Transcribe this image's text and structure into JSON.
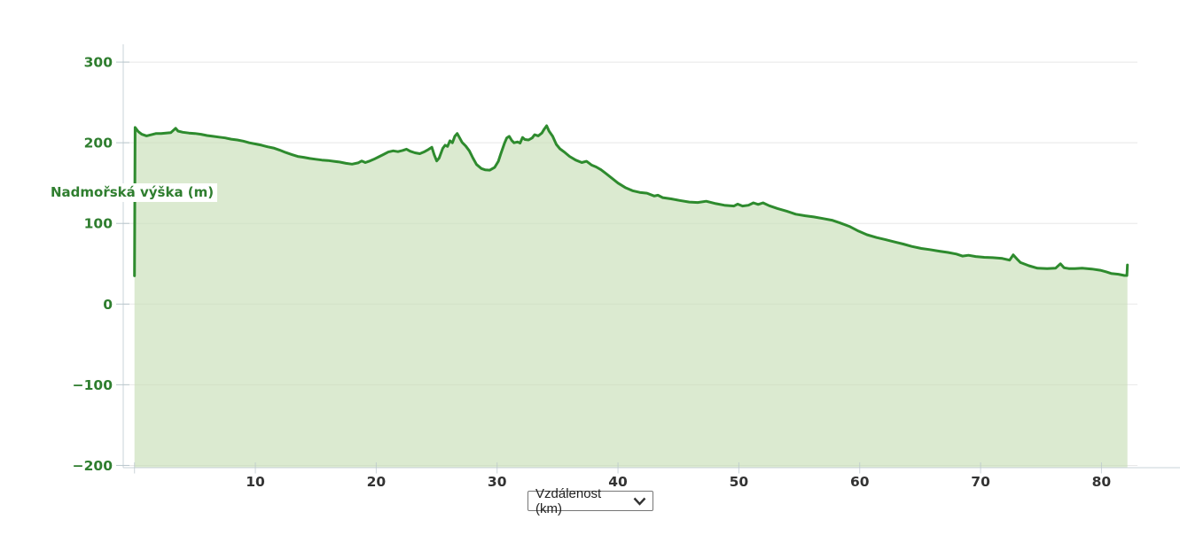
{
  "page": {
    "background": "#ffffff"
  },
  "controls": {
    "x_axis_select": {
      "value": "Vzdálenost (km)",
      "icon": "chevron-down-icon"
    }
  },
  "chart_data": {
    "type": "area",
    "title": "",
    "xlabel": "Vzdálenost (km)",
    "ylabel": "Nadmořská výška (m)",
    "xlim": [
      0,
      83
    ],
    "ylim": [
      -200,
      320
    ],
    "grid": true,
    "legend": false,
    "yticks": [
      {
        "v": 300,
        "label": "300"
      },
      {
        "v": 200,
        "label": "200"
      },
      {
        "v": 100,
        "label": "100"
      },
      {
        "v": 0,
        "label": "0"
      },
      {
        "v": -100,
        "label": "−100"
      },
      {
        "v": -200,
        "label": "−200"
      }
    ],
    "xticks": [
      {
        "v": 0,
        "label": ""
      },
      {
        "v": 10,
        "label": "10"
      },
      {
        "v": 20,
        "label": "20"
      },
      {
        "v": 30,
        "label": "30"
      },
      {
        "v": 40,
        "label": "40"
      },
      {
        "v": 50,
        "label": "50"
      },
      {
        "v": 60,
        "label": "60"
      },
      {
        "v": 70,
        "label": "70"
      },
      {
        "v": 80,
        "label": "80"
      }
    ],
    "colors": {
      "line": "#2e8b2e",
      "fill": "#c5ddb3",
      "fill_opacity": 0.62,
      "y_label": "#2f7e2f",
      "x_label": "#333333",
      "grid": "#e8e8e8",
      "axis": "#c9d3da",
      "tick": "#b9c6cc"
    },
    "series": [
      {
        "name": "Nadmořská výška (m)",
        "units": {
          "x": "km",
          "y": "m"
        },
        "points": [
          [
            0,
            35
          ],
          [
            0.05,
            219
          ],
          [
            0.3,
            214
          ],
          [
            0.6,
            210.5
          ],
          [
            1,
            208.5
          ],
          [
            1.4,
            210
          ],
          [
            1.8,
            211.5
          ],
          [
            2.2,
            211.5
          ],
          [
            2.6,
            212
          ],
          [
            3,
            212.5
          ],
          [
            3.4,
            218
          ],
          [
            3.6,
            214.5
          ],
          [
            4,
            213
          ],
          [
            4.5,
            212
          ],
          [
            5,
            211.5
          ],
          [
            5.5,
            210.5
          ],
          [
            6,
            209
          ],
          [
            6.5,
            208
          ],
          [
            7,
            207
          ],
          [
            7.5,
            206
          ],
          [
            8,
            204.5
          ],
          [
            8.5,
            203.5
          ],
          [
            9,
            202
          ],
          [
            9.5,
            200
          ],
          [
            10,
            198.5
          ],
          [
            10.5,
            197
          ],
          [
            11,
            195
          ],
          [
            11.5,
            193.5
          ],
          [
            12,
            191
          ],
          [
            12.5,
            188
          ],
          [
            13,
            185.5
          ],
          [
            13.5,
            183
          ],
          [
            14,
            182
          ],
          [
            14.5,
            180.5
          ],
          [
            15,
            179.5
          ],
          [
            15.5,
            178.5
          ],
          [
            16,
            178
          ],
          [
            16.5,
            177
          ],
          [
            17,
            176
          ],
          [
            17.5,
            174.5
          ],
          [
            18,
            173.5
          ],
          [
            18.5,
            175
          ],
          [
            18.8,
            177.5
          ],
          [
            19.1,
            175.5
          ],
          [
            19.4,
            177
          ],
          [
            19.8,
            179.5
          ],
          [
            20.2,
            182.5
          ],
          [
            20.6,
            185.5
          ],
          [
            21,
            188.5
          ],
          [
            21.4,
            190
          ],
          [
            21.8,
            189
          ],
          [
            22.2,
            190.5
          ],
          [
            22.5,
            192
          ],
          [
            22.8,
            189.5
          ],
          [
            23.2,
            187.5
          ],
          [
            23.6,
            186.5
          ],
          [
            24,
            189
          ],
          [
            24.3,
            191.5
          ],
          [
            24.6,
            194.5
          ],
          [
            24.8,
            185
          ],
          [
            25,
            177.5
          ],
          [
            25.2,
            181
          ],
          [
            25.5,
            193
          ],
          [
            25.7,
            197
          ],
          [
            25.9,
            195.5
          ],
          [
            26.1,
            202.5
          ],
          [
            26.3,
            200
          ],
          [
            26.5,
            208
          ],
          [
            26.7,
            211.5
          ],
          [
            26.9,
            206
          ],
          [
            27.1,
            200.5
          ],
          [
            27.4,
            196
          ],
          [
            27.7,
            190
          ],
          [
            28,
            181
          ],
          [
            28.3,
            173
          ],
          [
            28.7,
            168
          ],
          [
            29,
            166.5
          ],
          [
            29.4,
            166
          ],
          [
            29.8,
            169.5
          ],
          [
            30.1,
            177
          ],
          [
            30.3,
            186
          ],
          [
            30.6,
            199
          ],
          [
            30.8,
            206
          ],
          [
            31,
            208
          ],
          [
            31.2,
            203
          ],
          [
            31.4,
            200
          ],
          [
            31.7,
            201
          ],
          [
            31.9,
            199.5
          ],
          [
            32.1,
            206.5
          ],
          [
            32.3,
            204
          ],
          [
            32.6,
            203.5
          ],
          [
            32.9,
            206
          ],
          [
            33.1,
            210
          ],
          [
            33.4,
            208.5
          ],
          [
            33.7,
            212
          ],
          [
            33.9,
            217
          ],
          [
            34.1,
            221
          ],
          [
            34.3,
            214.5
          ],
          [
            34.6,
            208
          ],
          [
            34.9,
            198
          ],
          [
            35.2,
            192.5
          ],
          [
            35.6,
            188
          ],
          [
            36,
            183
          ],
          [
            36.5,
            178.5
          ],
          [
            37,
            175.5
          ],
          [
            37.4,
            177
          ],
          [
            37.8,
            172.5
          ],
          [
            38.2,
            170
          ],
          [
            38.6,
            166.5
          ],
          [
            39,
            162
          ],
          [
            39.5,
            156
          ],
          [
            40,
            150
          ],
          [
            40.6,
            144.5
          ],
          [
            41.2,
            140.5
          ],
          [
            41.8,
            138.5
          ],
          [
            42.4,
            137.5
          ],
          [
            43,
            134
          ],
          [
            43.3,
            135
          ],
          [
            43.7,
            132
          ],
          [
            44.4,
            130.5
          ],
          [
            45.1,
            128.5
          ],
          [
            45.9,
            126.5
          ],
          [
            46.6,
            126
          ],
          [
            47.3,
            127.5
          ],
          [
            48.1,
            124.5
          ],
          [
            48.8,
            122.5
          ],
          [
            49.6,
            121.5
          ],
          [
            49.9,
            124
          ],
          [
            50.3,
            121.5
          ],
          [
            50.8,
            122.5
          ],
          [
            51.2,
            125.5
          ],
          [
            51.6,
            123.5
          ],
          [
            52,
            125.5
          ],
          [
            52.5,
            122
          ],
          [
            53.2,
            118.5
          ],
          [
            54,
            115
          ],
          [
            54.7,
            111.5
          ],
          [
            55.5,
            109.5
          ],
          [
            56.2,
            108
          ],
          [
            57,
            106
          ],
          [
            57.7,
            104
          ],
          [
            58.4,
            100.5
          ],
          [
            59.2,
            96
          ],
          [
            59.9,
            90.5
          ],
          [
            60.6,
            86
          ],
          [
            61.4,
            82.5
          ],
          [
            62.1,
            80
          ],
          [
            62.9,
            77
          ],
          [
            63.6,
            74.5
          ],
          [
            64.3,
            71.5
          ],
          [
            65.1,
            69
          ],
          [
            65.8,
            67.5
          ],
          [
            66.6,
            65.5
          ],
          [
            67.3,
            64
          ],
          [
            68,
            62
          ],
          [
            68.5,
            59.5
          ],
          [
            69,
            60.5
          ],
          [
            69.6,
            59
          ],
          [
            70.3,
            58
          ],
          [
            71,
            57.5
          ],
          [
            71.8,
            56.5
          ],
          [
            72.4,
            54.5
          ],
          [
            72.7,
            61
          ],
          [
            73,
            56
          ],
          [
            73.3,
            51.5
          ],
          [
            74,
            47.5
          ],
          [
            74.7,
            44.5
          ],
          [
            75.5,
            44
          ],
          [
            76.2,
            44.5
          ],
          [
            76.6,
            50
          ],
          [
            76.9,
            45
          ],
          [
            77.3,
            44
          ],
          [
            77.8,
            44
          ],
          [
            78.4,
            44.5
          ],
          [
            79.2,
            43.5
          ],
          [
            79.9,
            42
          ],
          [
            80.4,
            40
          ],
          [
            80.8,
            38
          ],
          [
            81.4,
            37
          ],
          [
            81.9,
            35.5
          ],
          [
            82.1,
            35.5
          ],
          [
            82.15,
            48.5
          ]
        ]
      }
    ]
  }
}
